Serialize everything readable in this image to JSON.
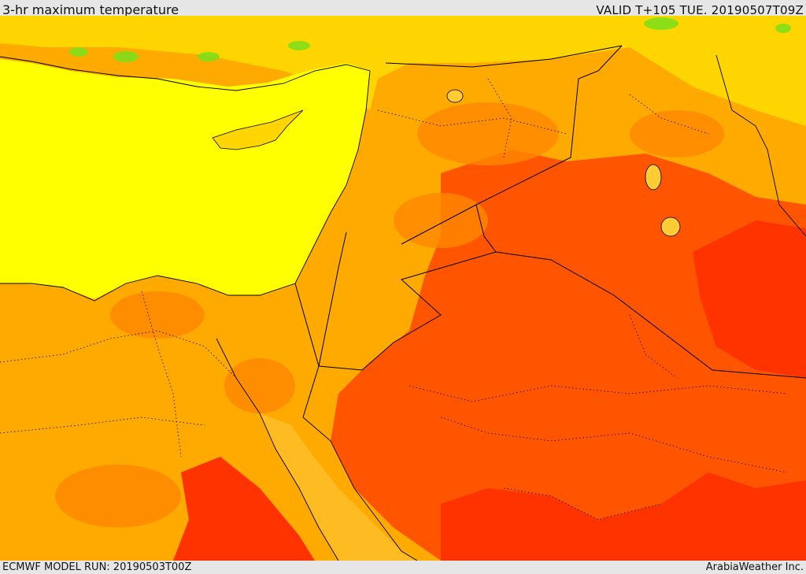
{
  "header": {
    "title": "3-hr maximum temperature",
    "valid": "VALID T+105 TUE. 20190507T09Z"
  },
  "footer": {
    "model_run": "ECMWF MODEL RUN: 20190503T00Z",
    "credit": "ArabiaWeather Inc."
  },
  "colors": {
    "sea": "#ffff00",
    "light_yellow": "#ffd500",
    "light_orange": "#ffaa00",
    "orange": "#ff8800",
    "dark_orange": "#ff5500",
    "red": "#ff3300",
    "green": "#7fe01a",
    "border": "#000000"
  }
}
